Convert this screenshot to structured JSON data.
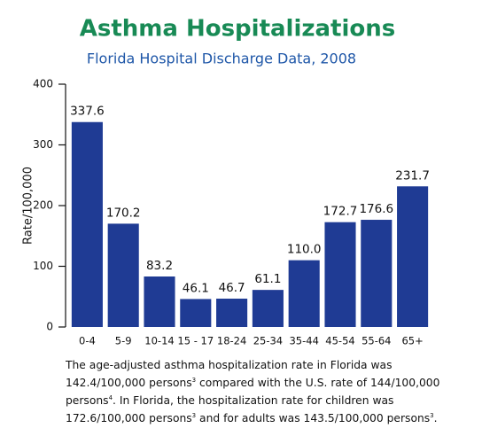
{
  "chart_data": {
    "type": "bar",
    "title": "Asthma Hospitalizations",
    "subtitle": "Florida Hospital Discharge Data, 2008",
    "y_label": "Rate/100,000",
    "categories": [
      "0-4",
      "5-9",
      "10-14",
      "15 - 17",
      "18-24",
      "25-34",
      "35-44",
      "45-54",
      "55-64",
      "65+"
    ],
    "values": [
      337.6,
      170.2,
      83.2,
      46.1,
      46.7,
      61.1,
      110.0,
      172.7,
      176.6,
      231.7
    ],
    "value_labels": [
      "337.6",
      "170.2",
      "83.2",
      "46.1",
      "46.7",
      "61.1",
      "110.0",
      "172.7",
      "176.6",
      "231.7"
    ],
    "color": "#1f3b94",
    "ylim": [
      0,
      400
    ],
    "yticks": [
      0,
      100,
      200,
      300,
      400
    ],
    "grid": false,
    "caption": [
      "The age-adjusted asthma hospitalization rate in Florida was 142.4/100,000 persons",
      "3",
      " compared with the U.S. rate of 144/100,000 persons",
      "4",
      ". In Florida, the hospitalization rate for children was 172.6/100,000 persons",
      "3",
      " and for adults was 143.5/100,000 persons",
      "3",
      "."
    ]
  }
}
